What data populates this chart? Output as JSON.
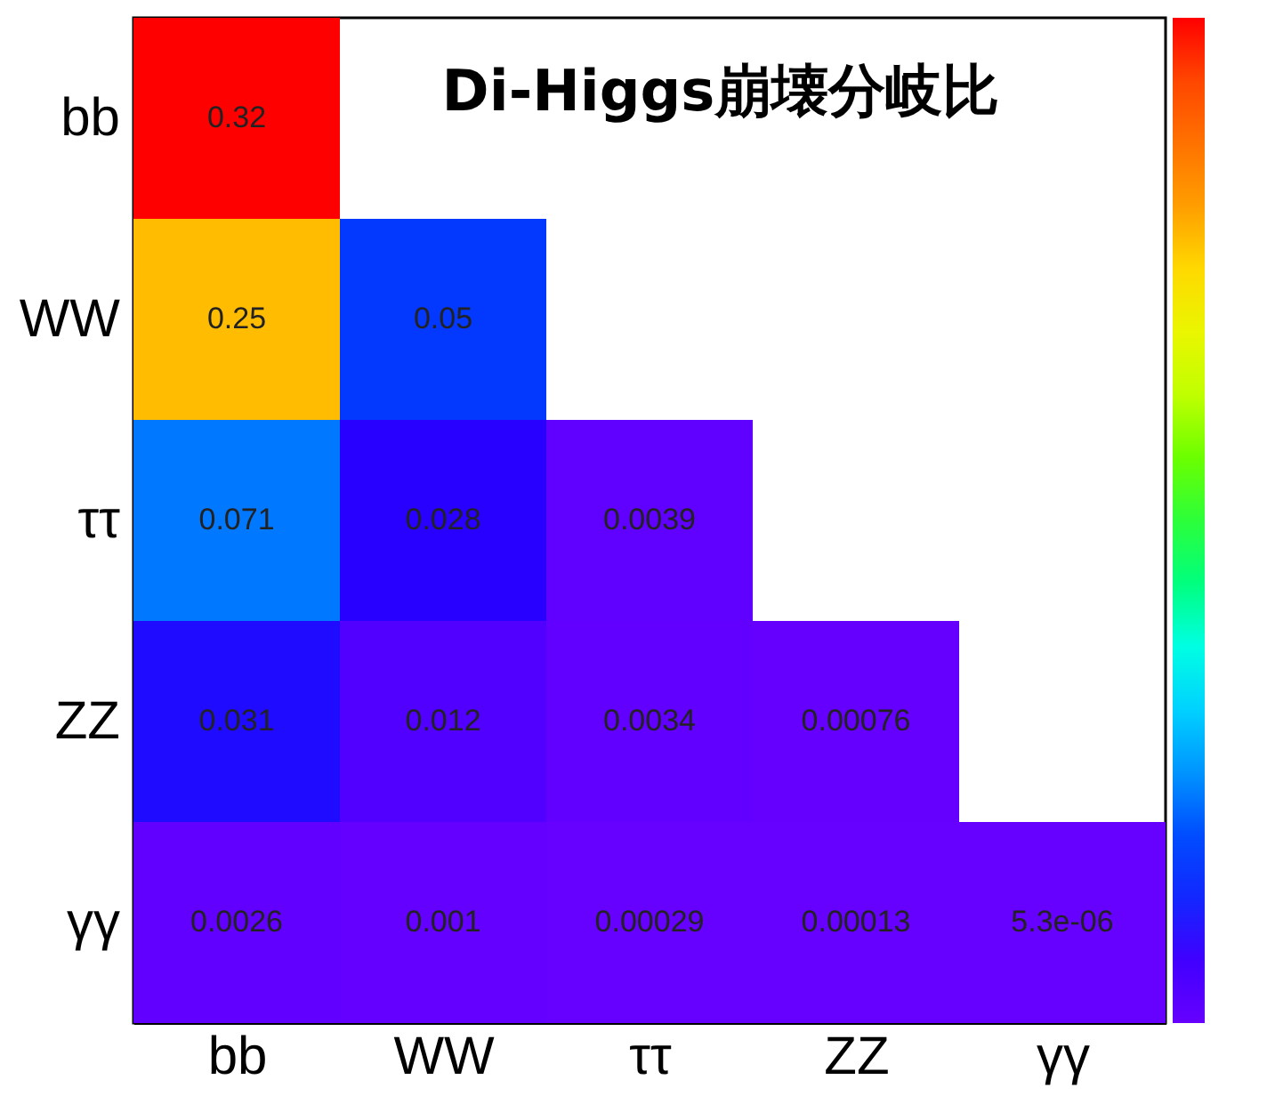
{
  "chart_data": {
    "type": "heatmap",
    "title": "Di-Higgs崩壊分岐比",
    "categories": [
      "bb",
      "WW",
      "ττ",
      "ZZ",
      "γγ"
    ],
    "y_categories": [
      "bb",
      "WW",
      "ττ",
      "ZZ",
      "γγ"
    ],
    "cells": [
      [
        0.32,
        null,
        null,
        null,
        null
      ],
      [
        0.25,
        0.05,
        null,
        null,
        null
      ],
      [
        0.071,
        0.028,
        0.0039,
        null,
        null
      ],
      [
        0.031,
        0.012,
        0.0034,
        0.00076,
        null
      ],
      [
        0.0026,
        0.001,
        0.00029,
        0.00013,
        5.3e-06
      ]
    ],
    "data_labels": true
  }
}
